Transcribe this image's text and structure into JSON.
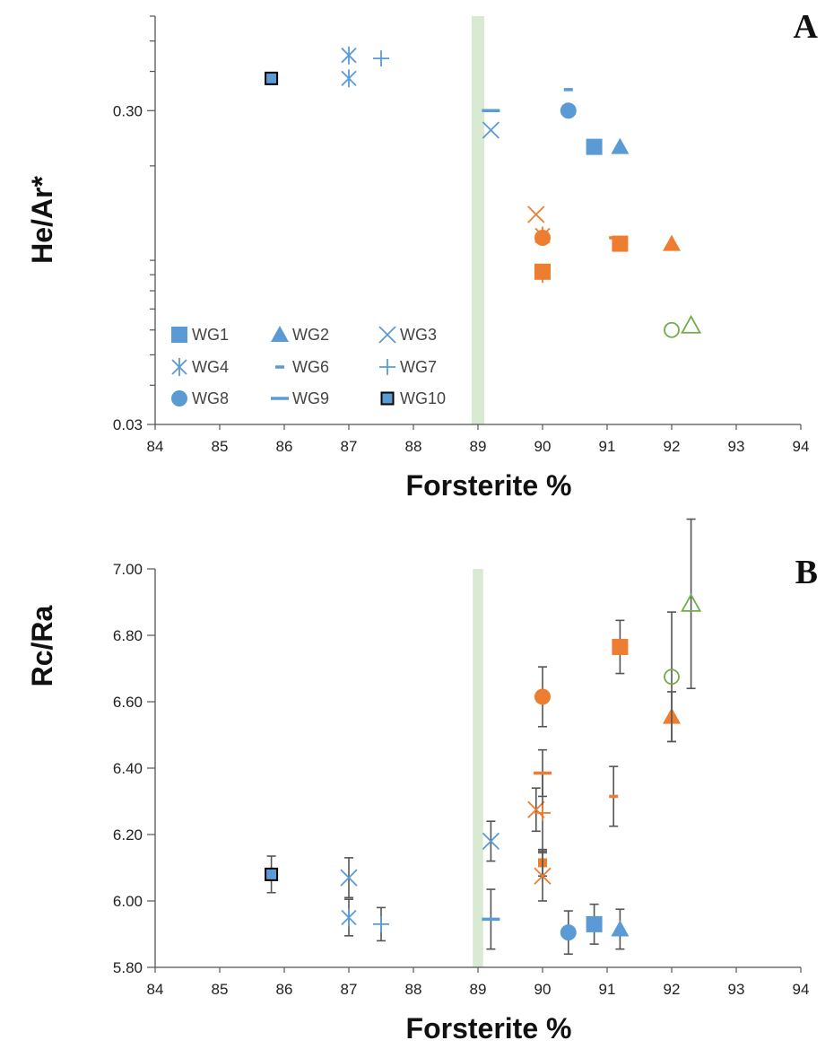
{
  "colors": {
    "blue": "#5b9bd5",
    "orange": "#ed7d31",
    "green": "#70ad47",
    "band": "#d9ead3",
    "errbar": "#555555",
    "axis": "#555555"
  },
  "chart_data": [
    {
      "panel_label": "A",
      "type": "scatter",
      "xlabel": "Forsterite %",
      "ylabel": "He/Ar*",
      "xlim": [
        84,
        94
      ],
      "ylim": [
        0.03,
        0.6
      ],
      "yscale": "log",
      "x_ticks": [
        "84",
        "85",
        "86",
        "87",
        "88",
        "89",
        "90",
        "91",
        "92",
        "93",
        "94"
      ],
      "y_ticks": [
        {
          "value": 0.03,
          "label": "0.03"
        },
        {
          "value": 0.3,
          "label": "0.30"
        }
      ],
      "band": {
        "x": [
          88.9,
          89.1
        ],
        "color": "green"
      },
      "legend": {
        "placement": "bottom-left",
        "entries": [
          {
            "label": "WG1",
            "symbol": "square"
          },
          {
            "label": "WG2",
            "symbol": "triangle"
          },
          {
            "label": "WG3",
            "symbol": "x"
          },
          {
            "label": "WG4",
            "symbol": "asterisk"
          },
          {
            "label": "WG6",
            "symbol": "dash-short"
          },
          {
            "label": "WG7",
            "symbol": "plus"
          },
          {
            "label": "WG8",
            "symbol": "circle"
          },
          {
            "label": "WG9",
            "symbol": "dash"
          },
          {
            "label": "WG10",
            "symbol": "square-outlined"
          }
        ]
      },
      "points": [
        {
          "series": "WG10",
          "x": 85.8,
          "y": 0.38,
          "symbol": "square-outlined",
          "color": "blue"
        },
        {
          "series": "WG4",
          "x": 87.0,
          "y": 0.45,
          "symbol": "asterisk",
          "color": "blue"
        },
        {
          "series": "WG4",
          "x": 87.0,
          "y": 0.38,
          "symbol": "asterisk",
          "color": "blue"
        },
        {
          "series": "WG7",
          "x": 87.5,
          "y": 0.44,
          "symbol": "plus",
          "color": "blue"
        },
        {
          "series": "WG9",
          "x": 89.2,
          "y": 0.3,
          "symbol": "dash",
          "color": "blue"
        },
        {
          "series": "WG3",
          "x": 89.2,
          "y": 0.26,
          "symbol": "x",
          "color": "blue"
        },
        {
          "series": "WG6",
          "x": 90.4,
          "y": 0.35,
          "symbol": "dash-short",
          "color": "blue"
        },
        {
          "series": "WG8",
          "x": 90.4,
          "y": 0.3,
          "symbol": "circle",
          "color": "blue"
        },
        {
          "series": "WG1",
          "x": 90.8,
          "y": 0.23,
          "symbol": "square",
          "color": "blue"
        },
        {
          "series": "WG2",
          "x": 91.2,
          "y": 0.23,
          "symbol": "triangle",
          "color": "blue"
        },
        {
          "series": "WG3",
          "x": 89.9,
          "y": 0.14,
          "symbol": "x",
          "color": "orange"
        },
        {
          "series": "WG4",
          "x": 90.0,
          "y": 0.12,
          "symbol": "asterisk",
          "color": "orange"
        },
        {
          "series": "WG8",
          "x": 90.0,
          "y": 0.118,
          "symbol": "circle",
          "color": "orange"
        },
        {
          "series": "WG7",
          "x": 90.0,
          "y": 0.09,
          "symbol": "plus",
          "color": "orange"
        },
        {
          "series": "WG1",
          "x": 90.0,
          "y": 0.092,
          "symbol": "square",
          "color": "orange"
        },
        {
          "series": "WG6",
          "x": 91.1,
          "y": 0.118,
          "symbol": "dash-short",
          "color": "orange"
        },
        {
          "series": "WG1",
          "x": 91.2,
          "y": 0.113,
          "symbol": "square",
          "color": "orange"
        },
        {
          "series": "WG2",
          "x": 92.0,
          "y": 0.113,
          "symbol": "triangle",
          "color": "orange"
        },
        {
          "series": "unlabeled",
          "x": 92.0,
          "y": 0.06,
          "symbol": "circle-open",
          "color": "green"
        },
        {
          "series": "unlabeled",
          "x": 92.3,
          "y": 0.062,
          "symbol": "triangle-open",
          "color": "green"
        }
      ]
    },
    {
      "panel_label": "B",
      "type": "scatter",
      "xlabel": "Forsterite %",
      "ylabel": "Rc/Ra",
      "xlim": [
        84,
        94
      ],
      "ylim": [
        5.8,
        7.0
      ],
      "x_ticks": [
        "84",
        "85",
        "86",
        "87",
        "88",
        "89",
        "90",
        "91",
        "92",
        "93",
        "94"
      ],
      "y_ticks": [
        {
          "value": 5.8,
          "label": "5.80"
        },
        {
          "value": 6.0,
          "label": "6.00"
        },
        {
          "value": 6.2,
          "label": "6.20"
        },
        {
          "value": 6.4,
          "label": "6.40"
        },
        {
          "value": 6.6,
          "label": "6.60"
        },
        {
          "value": 6.8,
          "label": "6.80"
        },
        {
          "value": 7.0,
          "label": "7.00"
        }
      ],
      "band": {
        "x": [
          88.92,
          89.08
        ],
        "color": "green"
      },
      "points": [
        {
          "series": "WG10",
          "x": 85.8,
          "y": 6.08,
          "err": 0.055,
          "symbol": "square-outlined",
          "color": "blue"
        },
        {
          "series": "WG3",
          "x": 87.0,
          "y": 6.07,
          "err": 0.06,
          "symbol": "x",
          "color": "blue"
        },
        {
          "series": "WG4",
          "x": 87.0,
          "y": 5.95,
          "err": 0.055,
          "symbol": "asterisk",
          "color": "blue"
        },
        {
          "series": "WG7",
          "x": 87.5,
          "y": 5.93,
          "err": 0.05,
          "symbol": "plus",
          "color": "blue"
        },
        {
          "series": "WG9",
          "x": 89.2,
          "y": 5.945,
          "err": 0.09,
          "symbol": "dash",
          "color": "blue"
        },
        {
          "series": "WG3",
          "x": 89.2,
          "y": 6.18,
          "err": 0.06,
          "symbol": "x",
          "color": "blue"
        },
        {
          "series": "WG8",
          "x": 90.4,
          "y": 5.905,
          "err": 0.065,
          "symbol": "circle",
          "color": "blue"
        },
        {
          "series": "WG1",
          "x": 90.8,
          "y": 5.93,
          "err": 0.06,
          "symbol": "square",
          "color": "blue"
        },
        {
          "series": "WG2",
          "x": 91.2,
          "y": 5.915,
          "err": 0.06,
          "symbol": "triangle",
          "color": "blue"
        },
        {
          "series": "WG3",
          "x": 89.9,
          "y": 6.275,
          "err": 0.065,
          "symbol": "x",
          "color": "orange"
        },
        {
          "series": "WG7",
          "x": 90.0,
          "y": 6.265,
          "err": 0.12,
          "symbol": "plus",
          "color": "orange"
        },
        {
          "series": "WG9",
          "x": 90.0,
          "y": 6.385,
          "err": 0.07,
          "symbol": "dash",
          "color": "orange"
        },
        {
          "series": "WG1",
          "x": 90.0,
          "y": 6.115,
          "err": 0.04,
          "symbol": "square-small",
          "color": "orange"
        },
        {
          "series": "WG3",
          "x": 90.0,
          "y": 6.075,
          "err": 0.075,
          "symbol": "x",
          "color": "orange"
        },
        {
          "series": "WG8",
          "x": 90.0,
          "y": 6.615,
          "err": 0.09,
          "symbol": "circle",
          "color": "orange"
        },
        {
          "series": "WG6",
          "x": 91.1,
          "y": 6.315,
          "err": 0.09,
          "symbol": "dash-short",
          "color": "orange"
        },
        {
          "series": "WG1",
          "x": 91.2,
          "y": 6.765,
          "err": 0.08,
          "symbol": "square",
          "color": "orange"
        },
        {
          "series": "WG2",
          "x": 92.0,
          "y": 6.555,
          "err": 0.075,
          "symbol": "triangle",
          "color": "orange"
        },
        {
          "series": "unlabeled",
          "x": 92.0,
          "y": 6.675,
          "err": 0.195,
          "symbol": "circle-open",
          "color": "green"
        },
        {
          "series": "unlabeled",
          "x": 92.3,
          "y": 6.895,
          "err": 0.255,
          "symbol": "triangle-open",
          "color": "green"
        }
      ]
    }
  ]
}
